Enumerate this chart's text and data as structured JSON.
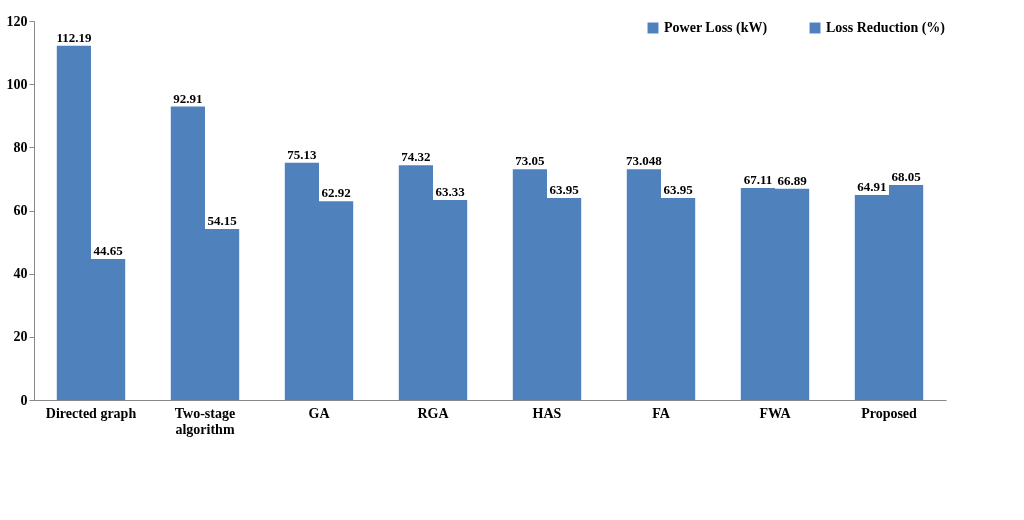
{
  "chart_data": {
    "type": "bar",
    "categories": [
      "Directed graph",
      "Two-stage algorithm",
      "GA",
      "RGA",
      "HAS",
      "FA",
      "FWA",
      "Proposed"
    ],
    "series": [
      {
        "name": "Power Loss (kW)",
        "color": "#4f81bd",
        "values": [
          112.19,
          92.91,
          75.13,
          74.32,
          73.05,
          73.048,
          67.11,
          64.91
        ]
      },
      {
        "name": "Loss Reduction (%)",
        "color": "#4f81bd",
        "values": [
          44.65,
          54.15,
          62.92,
          63.33,
          63.95,
          63.95,
          66.89,
          68.05
        ]
      }
    ],
    "ylim": [
      0,
      120
    ],
    "yticks": [
      0,
      20,
      40,
      60,
      80,
      100,
      120
    ],
    "grid": false,
    "legend": "top right",
    "data_labels": true
  }
}
